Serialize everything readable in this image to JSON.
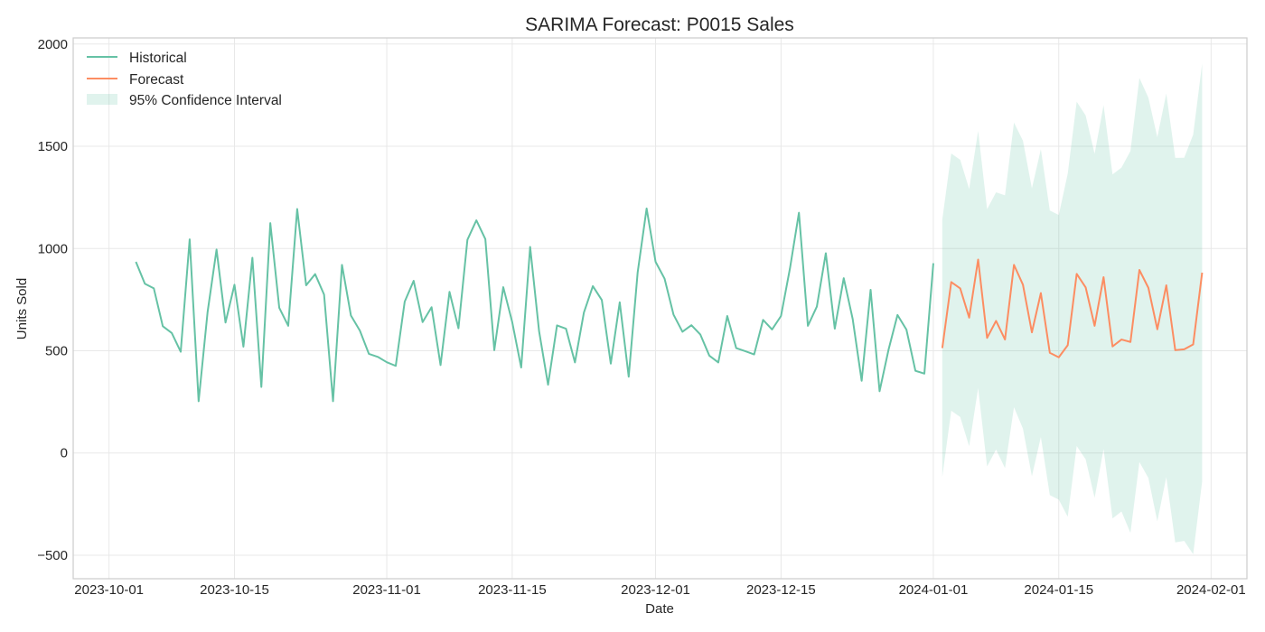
{
  "chart_data": {
    "type": "line",
    "title": "SARIMA Forecast: P0015 Sales",
    "xlabel": "Date",
    "ylabel": "Units Sold",
    "x_range": [
      "2023-09-27",
      "2024-02-05"
    ],
    "ylim": [
      -615,
      2030
    ],
    "grid": true,
    "legend_position": "top-left",
    "x_ticks": [
      "2023-10-01",
      "2023-10-15",
      "2023-11-01",
      "2023-11-15",
      "2023-12-01",
      "2023-12-15",
      "2024-01-01",
      "2024-01-15",
      "2024-02-01"
    ],
    "y_ticks": [
      2000,
      1500,
      1000,
      500,
      0,
      -500
    ],
    "y_tick_labels": [
      "2000",
      "1500",
      "1000",
      "500",
      "0",
      "−500"
    ],
    "colors": {
      "historical": "#66c2a5",
      "forecast": "#fc8d62",
      "confidence": "#66c2a5"
    },
    "legend": {
      "historical": "Historical",
      "forecast": "Forecast",
      "confidence": "95% Confidence Interval"
    },
    "historical": {
      "start_date": "2023-10-04",
      "values": [
        935,
        828,
        805,
        620,
        587,
        495,
        1045,
        253,
        689,
        995,
        638,
        823,
        520,
        955,
        323,
        1124,
        710,
        622,
        1193,
        820,
        875,
        775,
        253,
        920,
        672,
        598,
        485,
        470,
        444,
        426,
        740,
        842,
        640,
        713,
        430,
        788,
        610,
        1043,
        1138,
        1046,
        503,
        811,
        640,
        418,
        1008,
        595,
        334,
        624,
        608,
        443,
        687,
        816,
        748,
        437,
        737,
        373,
        883,
        1196,
        935,
        853,
        677,
        593,
        625,
        579,
        476,
        443,
        670,
        513,
        498,
        482,
        651,
        604,
        670,
        903,
        1175,
        622,
        716,
        977,
        608,
        855,
        655,
        353,
        798,
        302,
        505,
        675,
        603,
        402,
        388,
        928
      ]
    },
    "forecast": {
      "start_date": "2024-01-02",
      "values": [
        513,
        836,
        805,
        662,
        946,
        563,
        646,
        555,
        920,
        823,
        590,
        782,
        490,
        468,
        527,
        876,
        810,
        622,
        860,
        521,
        555,
        543,
        895,
        808,
        605,
        820,
        503,
        507,
        531,
        882
      ],
      "lower": [
        -116,
        207,
        176,
        33,
        317,
        -66,
        17,
        -74,
        224,
        119,
        -114,
        78,
        -206,
        -228,
        -312,
        34,
        -31,
        -219,
        19,
        -320,
        -286,
        -391,
        -44,
        -122,
        -334,
        -118,
        -437,
        -430,
        -495,
        -140
      ],
      "upper": [
        1142,
        1465,
        1434,
        1291,
        1575,
        1192,
        1275,
        1260,
        1616,
        1527,
        1294,
        1486,
        1186,
        1164,
        1366,
        1718,
        1651,
        1463,
        1701,
        1362,
        1396,
        1477,
        1834,
        1738,
        1544,
        1758,
        1443,
        1444,
        1557,
        1904
      ]
    }
  }
}
